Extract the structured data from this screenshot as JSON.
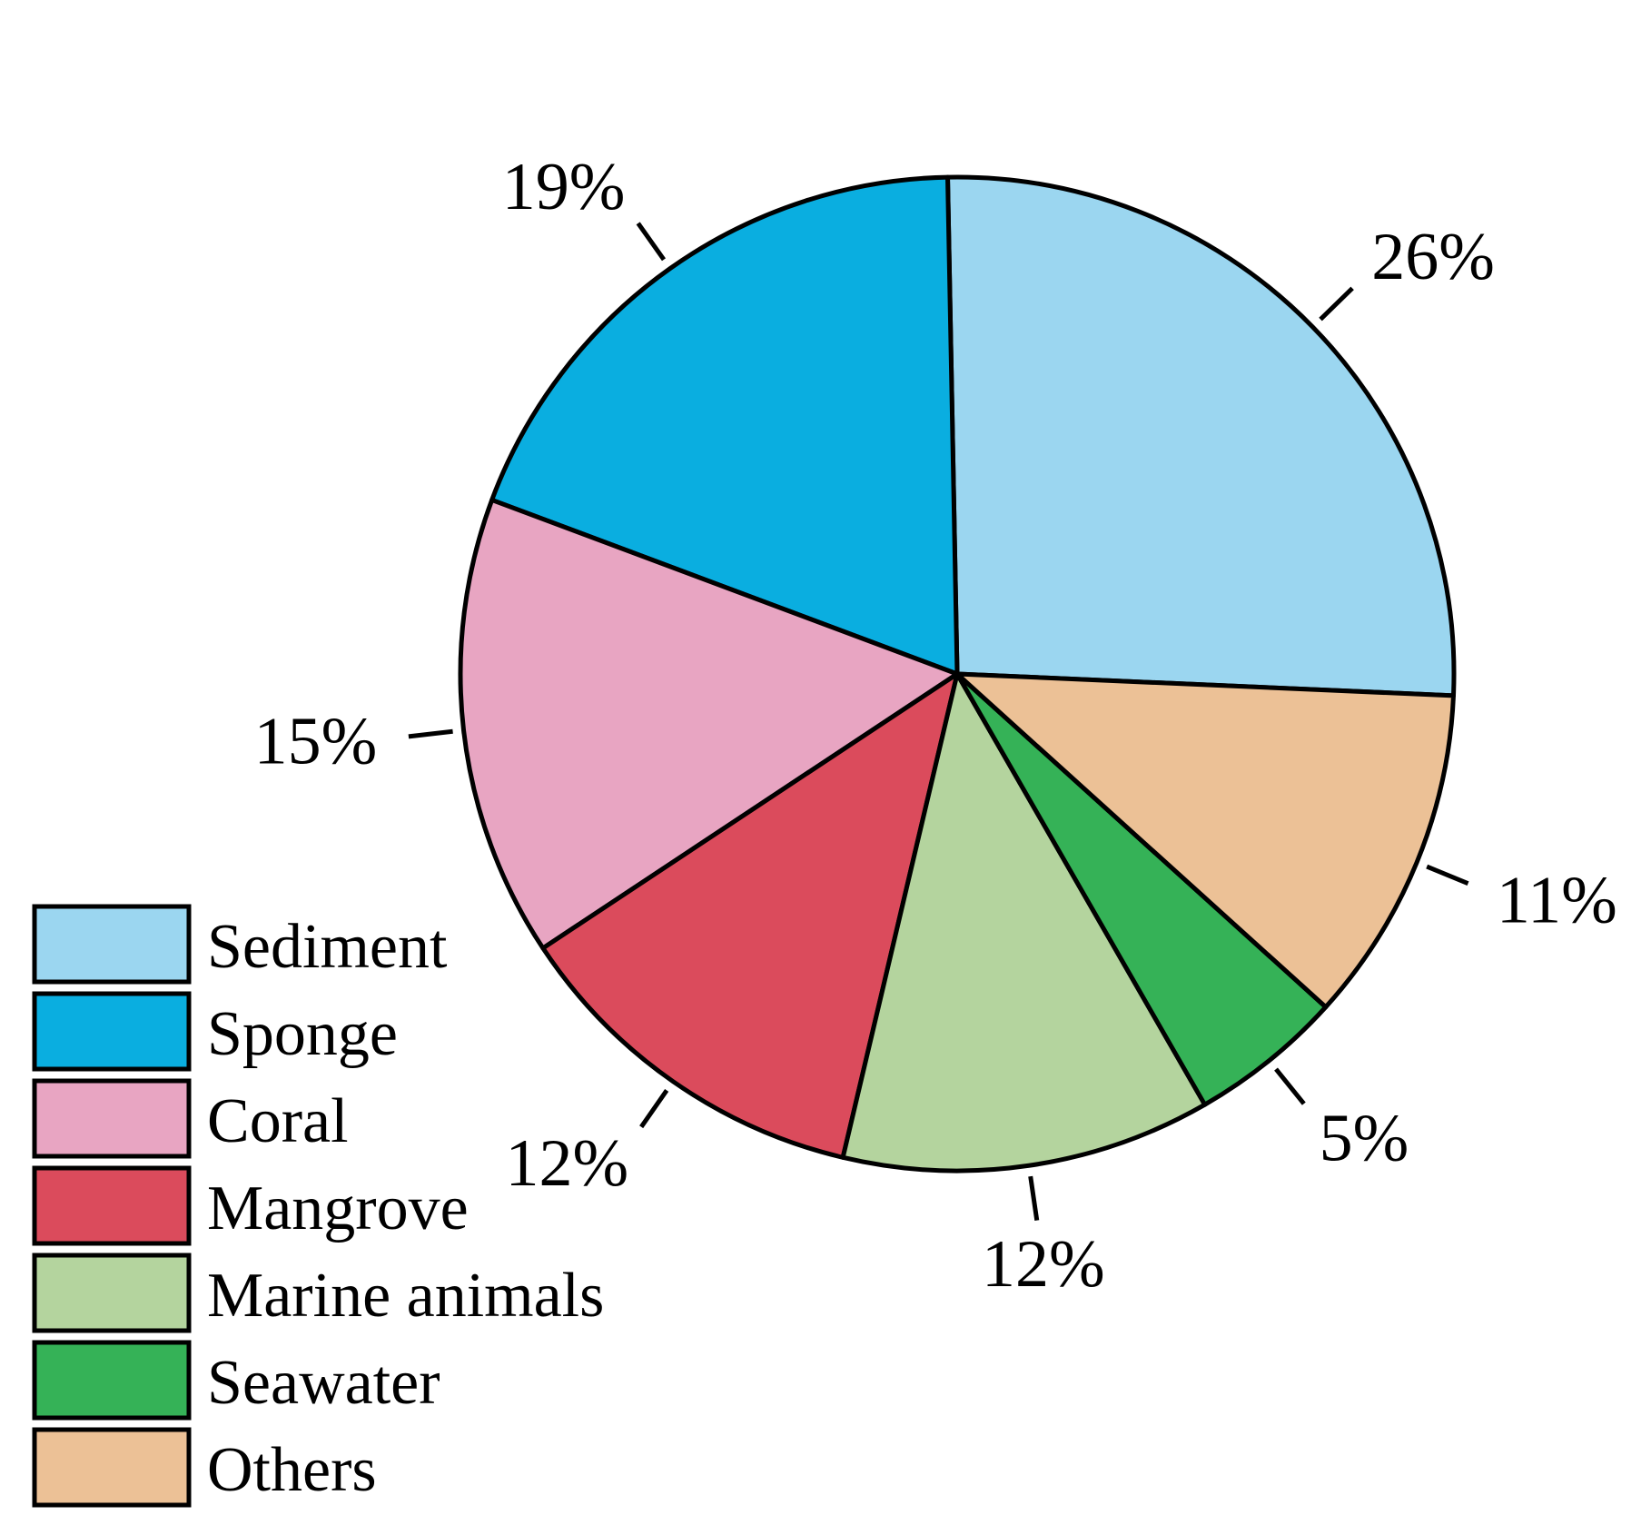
{
  "chart_data": {
    "type": "pie",
    "title": "",
    "start_angle_deg": -2.5,
    "direction": "counterclockwise",
    "slices": [
      {
        "label": "Sediment",
        "value": 26,
        "value_label": "26%",
        "color": "#9BD6F0"
      },
      {
        "label": "Sponge",
        "value": 19,
        "value_label": "19%",
        "color": "#0AAEE0"
      },
      {
        "label": "Coral",
        "value": 15,
        "value_label": "15%",
        "color": "#E8A5C2"
      },
      {
        "label": "Mangrove",
        "value": 12,
        "value_label": "12%",
        "color": "#DB4B5C"
      },
      {
        "label": "Marine animals",
        "value": 12,
        "value_label": "12%",
        "color": "#B4D49E"
      },
      {
        "label": "Seawater",
        "value": 5,
        "value_label": "5%",
        "color": "#35B257"
      },
      {
        "label": "Others",
        "value": 11,
        "value_label": "11%",
        "color": "#ECC196"
      }
    ],
    "legend": {
      "position": "bottom-left",
      "entries": [
        "Sediment",
        "Sponge",
        "Coral",
        "Mangrove",
        "Marine animals",
        "Seawater",
        "Others"
      ]
    },
    "outline_color": "#000000"
  }
}
